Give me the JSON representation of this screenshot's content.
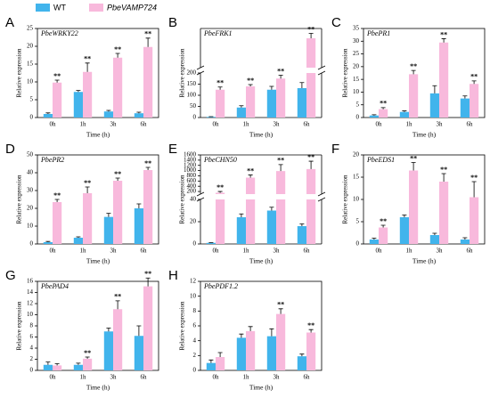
{
  "chart_data": [
    {
      "type": "bar",
      "label": "A",
      "title": "PbeWRKY22",
      "y_label": "Relative expression",
      "x_label": "Time (h)",
      "categories": [
        "0h",
        "1h",
        "3h",
        "6h"
      ],
      "series": [
        {
          "name": "WT",
          "color": "#41b4ec",
          "values": [
            1.0,
            7.2,
            1.7,
            1.2
          ],
          "errors": [
            0.3,
            0.4,
            0.3,
            0.3
          ]
        },
        {
          "name": "PbeVAMP724",
          "color": "#f8b9dc",
          "values": [
            9.8,
            12.8,
            16.8,
            19.8
          ],
          "errors": [
            0.7,
            2.5,
            1.2,
            2.5
          ],
          "significance": [
            "**",
            "**",
            "**",
            "**"
          ]
        }
      ],
      "ylim": [
        0,
        25
      ],
      "yticks": [
        0,
        5,
        10,
        15,
        20,
        25
      ]
    },
    {
      "type": "bar",
      "label": "B",
      "title": "PbeFRK1",
      "y_label": "Relative expression",
      "x_label": "Time (h)",
      "categories": [
        "0h",
        "1h",
        "3h",
        "6h"
      ],
      "series": [
        {
          "name": "WT",
          "color": "#41b4ec",
          "values": [
            3,
            45,
            125,
            132
          ],
          "errors": [
            1,
            8,
            15,
            25
          ]
        },
        {
          "name": "PbeVAMP724",
          "color": "#f8b9dc",
          "values": [
            125,
            140,
            175,
            450
          ],
          "errors": [
            12,
            8,
            15,
            25
          ],
          "significance": [
            "**",
            "**",
            "**",
            "**"
          ]
        }
      ],
      "ylim": [
        0,
        200
      ],
      "yticks": [
        0,
        50,
        100,
        150,
        200
      ],
      "y_break": {
        "ylim": [
          300,
          500
        ]
      }
    },
    {
      "type": "bar",
      "label": "C",
      "title": "PbePR1",
      "y_label": "Relative expression",
      "x_label": "Time (h)",
      "categories": [
        "0h",
        "1h",
        "3h",
        "6h"
      ],
      "series": [
        {
          "name": "WT",
          "color": "#41b4ec",
          "values": [
            0.8,
            2.2,
            9.5,
            7.5
          ],
          "errors": [
            0.3,
            0.4,
            3.0,
            1.0
          ]
        },
        {
          "name": "PbeVAMP724",
          "color": "#f8b9dc",
          "values": [
            3.3,
            17.0,
            29.5,
            13.2
          ],
          "errors": [
            0.6,
            1.5,
            1.5,
            1.2
          ],
          "significance": [
            "**",
            "**",
            "**",
            "**"
          ]
        }
      ],
      "ylim": [
        0,
        35
      ],
      "yticks": [
        0,
        5,
        10,
        15,
        20,
        25,
        30,
        35
      ]
    },
    {
      "type": "bar",
      "label": "D",
      "title": "PbePR2",
      "y_label": "Relative expression",
      "x_label": "Time (h)",
      "categories": [
        "0h",
        "1h",
        "3h",
        "6h"
      ],
      "series": [
        {
          "name": "WT",
          "color": "#41b4ec",
          "values": [
            1.0,
            3.5,
            15.2,
            20.0
          ],
          "errors": [
            0.4,
            0.5,
            2.0,
            2.5
          ]
        },
        {
          "name": "PbeVAMP724",
          "color": "#f8b9dc",
          "values": [
            23.5,
            28.5,
            35.5,
            41.5
          ],
          "errors": [
            1.5,
            3.5,
            1.5,
            1.5
          ],
          "significance": [
            "**",
            "**",
            "**",
            "**"
          ]
        }
      ],
      "ylim": [
        0,
        50
      ],
      "yticks": [
        0,
        10,
        20,
        30,
        40,
        50
      ]
    },
    {
      "type": "bar",
      "label": "E",
      "title": "PbeCHN50",
      "y_label": "Relative expression",
      "x_label": "Time (h)",
      "categories": [
        "0h",
        "1h",
        "3h",
        "6h"
      ],
      "series": [
        {
          "name": "WT",
          "color": "#41b4ec",
          "values": [
            1,
            24,
            30,
            16
          ],
          "errors": [
            0.3,
            3,
            3,
            2
          ]
        },
        {
          "name": "PbeVAMP724",
          "color": "#f8b9dc",
          "values": [
            150,
            730,
            980,
            1060
          ],
          "errors": [
            50,
            100,
            250,
            300
          ],
          "significance": [
            "**",
            "**",
            "**",
            "**"
          ]
        }
      ],
      "ylim": [
        0,
        40
      ],
      "yticks": [
        0,
        20,
        40
      ],
      "y_break": {
        "ylim": [
          100,
          1600
        ],
        "yticks": [
          200,
          400,
          600,
          800,
          1000,
          1200,
          1400,
          1600
        ]
      }
    },
    {
      "type": "bar",
      "label": "F",
      "title": "PbeEDS1",
      "y_label": "Relative expression",
      "x_label": "Time (h)",
      "categories": [
        "0h",
        "1h",
        "3h",
        "6h"
      ],
      "series": [
        {
          "name": "WT",
          "color": "#41b4ec",
          "values": [
            1.0,
            6.0,
            2.0,
            1.0
          ],
          "errors": [
            0.3,
            0.5,
            0.4,
            0.4
          ]
        },
        {
          "name": "PbeVAMP724",
          "color": "#f8b9dc",
          "values": [
            3.7,
            16.5,
            14.0,
            10.5
          ],
          "errors": [
            0.5,
            1.8,
            1.8,
            3.5
          ],
          "significance": [
            "**",
            "**",
            "**",
            "**"
          ]
        }
      ],
      "ylim": [
        0,
        20
      ],
      "yticks": [
        0,
        5,
        10,
        15,
        20
      ]
    },
    {
      "type": "bar",
      "label": "G",
      "title": "PbePAD4",
      "y_label": "Relative expression",
      "x_label": "Time (h)",
      "categories": [
        "0h",
        "1h",
        "3h",
        "6h"
      ],
      "series": [
        {
          "name": "WT",
          "color": "#41b4ec",
          "values": [
            1.0,
            1.0,
            7.0,
            6.2
          ],
          "errors": [
            0.5,
            0.3,
            0.6,
            1.8
          ]
        },
        {
          "name": "PbeVAMP724",
          "color": "#f8b9dc",
          "values": [
            0.9,
            2.1,
            11.0,
            15.1
          ],
          "errors": [
            0.3,
            0.3,
            1.5,
            1.5
          ],
          "significance": [
            null,
            "**",
            "**",
            "**"
          ]
        }
      ],
      "ylim": [
        0,
        16
      ],
      "yticks": [
        0,
        2,
        4,
        6,
        8,
        10,
        12,
        14,
        16
      ]
    },
    {
      "type": "bar",
      "label": "H",
      "title": "PbePDF1.2",
      "y_label": "Relative expression",
      "x_label": "Time (h)",
      "categories": [
        "0h",
        "1h",
        "3h",
        "6h"
      ],
      "series": [
        {
          "name": "WT",
          "color": "#41b4ec",
          "values": [
            1.0,
            4.4,
            4.6,
            1.9
          ],
          "errors": [
            0.4,
            0.5,
            1.0,
            0.3
          ]
        },
        {
          "name": "PbeVAMP724",
          "color": "#f8b9dc",
          "values": [
            1.8,
            5.3,
            7.6,
            5.1
          ],
          "errors": [
            0.6,
            0.6,
            0.7,
            0.4
          ],
          "significance": [
            null,
            null,
            "**",
            "**"
          ]
        }
      ],
      "ylim": [
        0,
        12
      ],
      "yticks": [
        0,
        2,
        4,
        6,
        8,
        10,
        12
      ]
    }
  ]
}
